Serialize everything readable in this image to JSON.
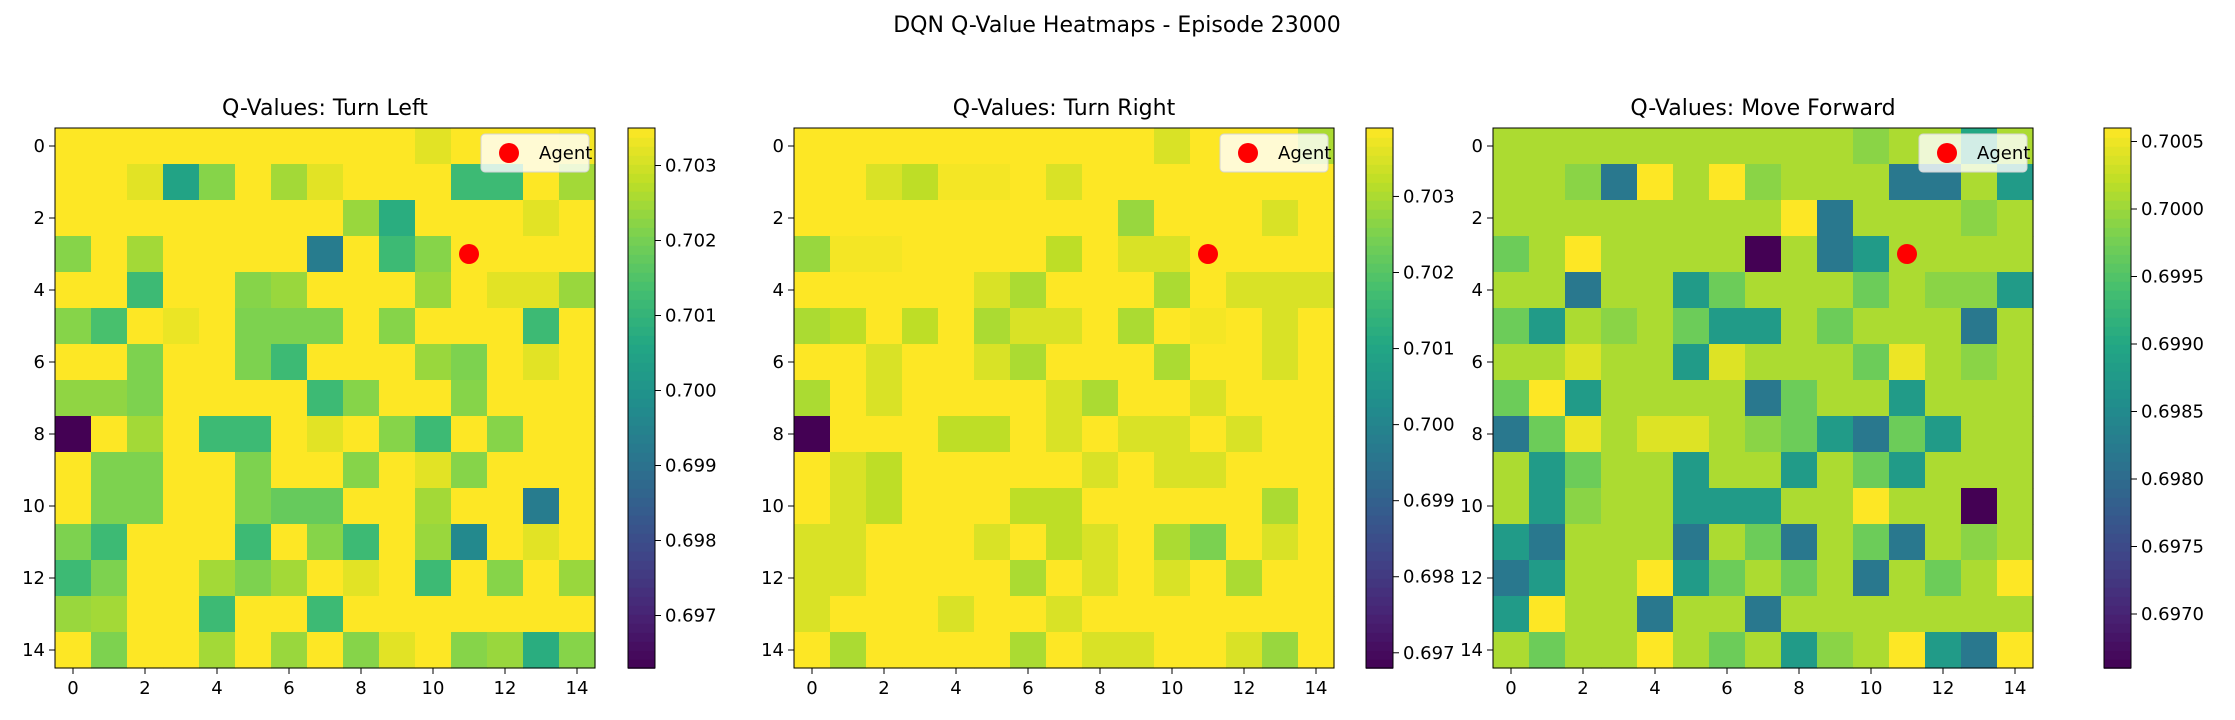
{
  "figure": {
    "suptitle": "DQN Q-Value Heatmaps - Episode 23000",
    "colormap": "viridis",
    "agent_color": "#ff0000"
  },
  "chart_data": [
    {
      "type": "heatmap",
      "title": "Q-Values: Turn Left",
      "xticks": [
        "0",
        "2",
        "4",
        "6",
        "8",
        "10",
        "12",
        "14"
      ],
      "yticks": [
        "0",
        "2",
        "4",
        "6",
        "8",
        "10",
        "12",
        "14"
      ],
      "colorbar": {
        "ticks": [
          "0.697",
          "0.698",
          "0.699",
          "0.700",
          "0.701",
          "0.702",
          "0.703"
        ],
        "range": [
          0.6963,
          0.7035
        ]
      },
      "legend": {
        "label": "Agent",
        "position": "top-right"
      },
      "agent": {
        "x": 11,
        "y": 3
      },
      "grid": [
        [
          0.7035,
          0.7035,
          0.7035,
          0.7035,
          0.7035,
          0.7035,
          0.7035,
          0.7035,
          0.7035,
          0.7035,
          0.7032,
          0.7035,
          0.7035,
          0.7035,
          0.7034
        ],
        [
          0.7035,
          0.7035,
          0.7032,
          0.7005,
          0.7022,
          0.7035,
          0.7025,
          0.7032,
          0.7035,
          0.7035,
          0.7035,
          0.7012,
          0.7012,
          0.7035,
          0.7025
        ],
        [
          0.7035,
          0.7035,
          0.7035,
          0.7035,
          0.7035,
          0.7035,
          0.7035,
          0.7035,
          0.7024,
          0.7008,
          0.7035,
          0.7035,
          0.7035,
          0.7032,
          0.7035
        ],
        [
          0.7022,
          0.7035,
          0.7025,
          0.7035,
          0.7035,
          0.7035,
          0.7035,
          0.6993,
          0.7035,
          0.7012,
          0.7022,
          0.7035,
          0.7035,
          0.7035,
          0.7035
        ],
        [
          0.7035,
          0.7035,
          0.7012,
          0.7035,
          0.7035,
          0.7022,
          0.7024,
          0.7035,
          0.7035,
          0.7035,
          0.7024,
          0.7035,
          0.7032,
          0.7032,
          0.7024
        ],
        [
          0.7022,
          0.7014,
          0.7035,
          0.7033,
          0.7035,
          0.7021,
          0.7021,
          0.7021,
          0.7035,
          0.7022,
          0.7035,
          0.7035,
          0.7035,
          0.7012,
          0.7035
        ],
        [
          0.7035,
          0.7035,
          0.7021,
          0.7035,
          0.7035,
          0.7021,
          0.7012,
          0.7035,
          0.7035,
          0.7035,
          0.7024,
          0.7021,
          0.7035,
          0.7032,
          0.7035
        ],
        [
          0.7023,
          0.7023,
          0.7021,
          0.7035,
          0.7035,
          0.7035,
          0.7035,
          0.7012,
          0.7022,
          0.7035,
          0.7035,
          0.7022,
          0.7035,
          0.7035,
          0.7035
        ],
        [
          0.6963,
          0.7035,
          0.7025,
          0.7035,
          0.7012,
          0.7012,
          0.7035,
          0.7032,
          0.7035,
          0.7022,
          0.7012,
          0.7035,
          0.7022,
          0.7035,
          0.7035
        ],
        [
          0.7035,
          0.7021,
          0.7021,
          0.7035,
          0.7035,
          0.7021,
          0.7035,
          0.7035,
          0.7022,
          0.7035,
          0.7032,
          0.7022,
          0.7035,
          0.7035,
          0.7035
        ],
        [
          0.7035,
          0.7021,
          0.7021,
          0.7035,
          0.7035,
          0.7021,
          0.7018,
          0.7018,
          0.7035,
          0.7035,
          0.7025,
          0.7035,
          0.7035,
          0.6993,
          0.7035
        ],
        [
          0.7021,
          0.7012,
          0.7035,
          0.7035,
          0.7035,
          0.7012,
          0.7035,
          0.7022,
          0.7012,
          0.7035,
          0.7024,
          0.6997,
          0.7035,
          0.7032,
          0.7035
        ],
        [
          0.7012,
          0.7021,
          0.7035,
          0.7035,
          0.7025,
          0.7021,
          0.7025,
          0.7035,
          0.7032,
          0.7035,
          0.7012,
          0.7035,
          0.7022,
          0.7035,
          0.7024
        ],
        [
          0.7024,
          0.7025,
          0.7035,
          0.7035,
          0.7012,
          0.7035,
          0.7035,
          0.7012,
          0.7035,
          0.7035,
          0.7035,
          0.7035,
          0.7035,
          0.7035,
          0.7035
        ],
        [
          0.7035,
          0.7021,
          0.7035,
          0.7035,
          0.7025,
          0.7035,
          0.7024,
          0.7035,
          0.7022,
          0.7032,
          0.7035,
          0.7022,
          0.7024,
          0.7008,
          0.7022
        ]
      ]
    },
    {
      "type": "heatmap",
      "title": "Q-Values: Turn Right",
      "xticks": [
        "0",
        "2",
        "4",
        "6",
        "8",
        "10",
        "12",
        "14"
      ],
      "yticks": [
        "0",
        "2",
        "4",
        "6",
        "8",
        "10",
        "12",
        "14"
      ],
      "colorbar": {
        "ticks": [
          "0.697",
          "0.698",
          "0.699",
          "0.700",
          "0.701",
          "0.702",
          "0.703"
        ],
        "range": [
          0.6968,
          0.7039
        ]
      },
      "legend": {
        "label": "Agent",
        "position": "top-right"
      },
      "agent": {
        "x": 11,
        "y": 3
      },
      "grid": [
        [
          0.7039,
          0.7039,
          0.7039,
          0.7039,
          0.7039,
          0.7039,
          0.7039,
          0.7039,
          0.7039,
          0.7039,
          0.7035,
          0.7039,
          0.7039,
          0.7039,
          0.703
        ],
        [
          0.7039,
          0.7039,
          0.7035,
          0.7032,
          0.7038,
          0.7038,
          0.7039,
          0.7035,
          0.7039,
          0.7039,
          0.7039,
          0.7039,
          0.7039,
          0.7039,
          0.7039
        ],
        [
          0.7039,
          0.7039,
          0.7039,
          0.7039,
          0.7039,
          0.7039,
          0.7039,
          0.7039,
          0.7039,
          0.7028,
          0.7039,
          0.7039,
          0.7039,
          0.7035,
          0.7039
        ],
        [
          0.7028,
          0.7038,
          0.7038,
          0.7039,
          0.7039,
          0.7039,
          0.7039,
          0.7032,
          0.7039,
          0.7035,
          0.7035,
          0.7039,
          0.7039,
          0.7039,
          0.7039
        ],
        [
          0.7039,
          0.7039,
          0.7039,
          0.7039,
          0.7039,
          0.7035,
          0.703,
          0.7039,
          0.7039,
          0.7039,
          0.703,
          0.7039,
          0.7035,
          0.7035,
          0.7035
        ],
        [
          0.703,
          0.7032,
          0.7039,
          0.7032,
          0.7039,
          0.703,
          0.7035,
          0.7035,
          0.7039,
          0.703,
          0.7039,
          0.7038,
          0.7039,
          0.7035,
          0.7039
        ],
        [
          0.7039,
          0.7039,
          0.7035,
          0.7039,
          0.7039,
          0.7035,
          0.703,
          0.7039,
          0.7039,
          0.7039,
          0.703,
          0.7039,
          0.7039,
          0.7035,
          0.7039
        ],
        [
          0.703,
          0.7039,
          0.7035,
          0.7039,
          0.7039,
          0.7039,
          0.7039,
          0.7035,
          0.703,
          0.7039,
          0.7039,
          0.7035,
          0.7039,
          0.7039,
          0.7039
        ],
        [
          0.6968,
          0.7039,
          0.7039,
          0.7039,
          0.7032,
          0.7032,
          0.7039,
          0.7035,
          0.7039,
          0.7035,
          0.7035,
          0.7039,
          0.7035,
          0.7039,
          0.7039
        ],
        [
          0.7039,
          0.7035,
          0.7032,
          0.7039,
          0.7039,
          0.7039,
          0.7039,
          0.7039,
          0.7035,
          0.7039,
          0.7035,
          0.7035,
          0.7039,
          0.7039,
          0.7039
        ],
        [
          0.7039,
          0.7035,
          0.7032,
          0.7039,
          0.7039,
          0.7039,
          0.7032,
          0.7032,
          0.7039,
          0.7039,
          0.7039,
          0.7039,
          0.7039,
          0.703,
          0.7039
        ],
        [
          0.7035,
          0.7035,
          0.7039,
          0.7039,
          0.7039,
          0.7035,
          0.7039,
          0.7032,
          0.7035,
          0.7039,
          0.703,
          0.7025,
          0.7039,
          0.7035,
          0.7039
        ],
        [
          0.7035,
          0.7035,
          0.7039,
          0.7039,
          0.7039,
          0.7039,
          0.703,
          0.7039,
          0.7035,
          0.7039,
          0.7035,
          0.7039,
          0.703,
          0.7039,
          0.7039
        ],
        [
          0.7035,
          0.7039,
          0.7039,
          0.7039,
          0.7035,
          0.7039,
          0.7039,
          0.7035,
          0.7039,
          0.7039,
          0.7039,
          0.7039,
          0.7039,
          0.7039,
          0.7039
        ],
        [
          0.7039,
          0.703,
          0.7039,
          0.7039,
          0.7039,
          0.7039,
          0.703,
          0.7039,
          0.7035,
          0.7035,
          0.7039,
          0.7039,
          0.7035,
          0.7028,
          0.7039
        ]
      ]
    },
    {
      "type": "heatmap",
      "title": "Q-Values: Move Forward",
      "xticks": [
        "0",
        "2",
        "4",
        "6",
        "8",
        "10",
        "12",
        "14"
      ],
      "yticks": [
        "0",
        "2",
        "4",
        "6",
        "8",
        "10",
        "12",
        "14"
      ],
      "colorbar": {
        "ticks": [
          "0.6970",
          "0.6975",
          "0.6980",
          "0.6985",
          "0.6990",
          "0.6995",
          "0.7000",
          "0.7005"
        ],
        "range": [
          0.6966,
          0.7006
        ]
      },
      "legend": {
        "label": "Agent",
        "position": "top-right"
      },
      "agent": {
        "x": 11,
        "y": 3
      },
      "grid": [
        [
          0.7001,
          0.7001,
          0.7001,
          0.7001,
          0.7001,
          0.7001,
          0.7001,
          0.7001,
          0.7001,
          0.7001,
          0.6999,
          0.7001,
          0.7001,
          0.699,
          0.7001
        ],
        [
          0.7001,
          0.7001,
          0.6999,
          0.6982,
          0.7006,
          0.7001,
          0.7006,
          0.6999,
          0.7001,
          0.7001,
          0.7001,
          0.6982,
          0.6982,
          0.7001,
          0.6988
        ],
        [
          0.7001,
          0.7001,
          0.7001,
          0.7001,
          0.7001,
          0.7001,
          0.7001,
          0.7001,
          0.7006,
          0.6982,
          0.7001,
          0.7001,
          0.7001,
          0.6999,
          0.7001
        ],
        [
          0.6997,
          0.7001,
          0.7006,
          0.7001,
          0.7001,
          0.7001,
          0.7001,
          0.6966,
          0.7001,
          0.6982,
          0.6988,
          0.7001,
          0.7001,
          0.7001,
          0.7001
        ],
        [
          0.7001,
          0.7001,
          0.6982,
          0.7001,
          0.7001,
          0.6988,
          0.6997,
          0.7001,
          0.7001,
          0.7001,
          0.6997,
          0.7001,
          0.6999,
          0.6999,
          0.6988
        ],
        [
          0.6997,
          0.6988,
          0.7001,
          0.6999,
          0.7001,
          0.6997,
          0.6988,
          0.6988,
          0.7001,
          0.6997,
          0.7001,
          0.7001,
          0.7001,
          0.6982,
          0.7001
        ],
        [
          0.7001,
          0.7001,
          0.7004,
          0.7001,
          0.7001,
          0.6988,
          0.7004,
          0.7001,
          0.7001,
          0.7001,
          0.6997,
          0.7005,
          0.7001,
          0.6999,
          0.7001
        ],
        [
          0.6997,
          0.7006,
          0.6988,
          0.7001,
          0.7001,
          0.7001,
          0.7001,
          0.6982,
          0.6997,
          0.7001,
          0.7001,
          0.6988,
          0.7001,
          0.7001,
          0.7001
        ],
        [
          0.6982,
          0.6997,
          0.7005,
          0.7001,
          0.7004,
          0.7004,
          0.7001,
          0.6999,
          0.6997,
          0.6988,
          0.6982,
          0.6997,
          0.6988,
          0.7001,
          0.7001
        ],
        [
          0.7001,
          0.6988,
          0.6997,
          0.7001,
          0.7001,
          0.6988,
          0.7001,
          0.7001,
          0.6988,
          0.7001,
          0.6997,
          0.6988,
          0.7001,
          0.7001,
          0.7001
        ],
        [
          0.7001,
          0.6988,
          0.6999,
          0.7001,
          0.7001,
          0.6988,
          0.6988,
          0.6988,
          0.7001,
          0.7001,
          0.7006,
          0.7001,
          0.7001,
          0.6966,
          0.7001
        ],
        [
          0.6988,
          0.6982,
          0.7001,
          0.7001,
          0.7001,
          0.6982,
          0.7001,
          0.6997,
          0.6982,
          0.7001,
          0.6997,
          0.6982,
          0.7001,
          0.6999,
          0.7001
        ],
        [
          0.6982,
          0.6988,
          0.7001,
          0.7001,
          0.7006,
          0.6988,
          0.6997,
          0.7001,
          0.6997,
          0.7001,
          0.6982,
          0.7001,
          0.6997,
          0.7001,
          0.7006
        ],
        [
          0.6988,
          0.7006,
          0.7001,
          0.7001,
          0.6982,
          0.7001,
          0.7001,
          0.6982,
          0.7001,
          0.7001,
          0.7001,
          0.7001,
          0.7001,
          0.7001,
          0.7001
        ],
        [
          0.7001,
          0.6997,
          0.7001,
          0.7001,
          0.7006,
          0.7001,
          0.6997,
          0.7001,
          0.6988,
          0.6999,
          0.7001,
          0.7006,
          0.6988,
          0.6982,
          0.7006
        ]
      ]
    }
  ]
}
